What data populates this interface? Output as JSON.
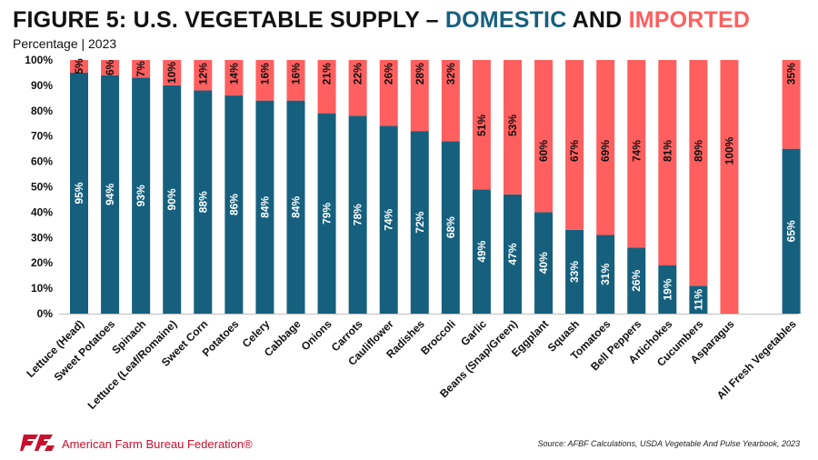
{
  "title": {
    "prefix": "FIGURE 5: U.S. VEGETABLE SUPPLY – ",
    "domestic": "DOMESTIC",
    "and": " AND ",
    "imported": "IMPORTED"
  },
  "subtitle": "Percentage | 2023",
  "footer": {
    "org": "American Farm Bureau Federation®",
    "source": "Source: AFBF Calculations, USDA Vegetable And Pulse Yearbook, 2023"
  },
  "colors": {
    "domestic": "#16607e",
    "imported": "#ff5f5f",
    "title_domestic": "#16607e",
    "title_imported": "#ff5f5f",
    "brand_red": "#c8102e"
  },
  "chart_data": {
    "type": "bar",
    "stacked": true,
    "percent": true,
    "ylim": [
      0,
      100
    ],
    "yticks": [
      "0%",
      "10%",
      "20%",
      "30%",
      "40%",
      "50%",
      "60%",
      "70%",
      "80%",
      "90%",
      "100%"
    ],
    "categories": [
      "Lettuce (Head)",
      "Sweet Potatoes",
      "Spinach",
      "Lettuce (Leaf/Romaine)",
      "Sweet Corn",
      "Potatoes",
      "Celery",
      "Cabbage",
      "Onions",
      "Carrots",
      "Cauliflower",
      "Radishes",
      "Broccoli",
      "Garlic",
      "Beans (Snap/Green)",
      "Eggplant",
      "Squash",
      "Tomatoes",
      "Bell Peppers",
      "Artichokes",
      "Cucumbers",
      "Asparagus",
      "All Fresh Vegetables"
    ],
    "series": [
      {
        "name": "DOMESTIC",
        "values": [
          95,
          94,
          93,
          90,
          88,
          86,
          84,
          84,
          79,
          78,
          74,
          72,
          68,
          49,
          47,
          40,
          33,
          31,
          26,
          19,
          11,
          0,
          65
        ]
      },
      {
        "name": "IMPORTED",
        "values": [
          5,
          6,
          7,
          10,
          12,
          14,
          16,
          16,
          21,
          22,
          26,
          28,
          32,
          51,
          53,
          60,
          67,
          69,
          74,
          81,
          89,
          100,
          35
        ]
      }
    ],
    "domestic_labels": [
      "95%",
      "94%",
      "93%",
      "90%",
      "88%",
      "86%",
      "84%",
      "84%",
      "79%",
      "78%",
      "74%",
      "72%",
      "68%",
      "49%",
      "47%",
      "40%",
      "33%",
      "31%",
      "26%",
      "19%",
      "11%",
      "",
      "65%"
    ],
    "imported_labels": [
      "5%",
      "6%",
      "7%",
      "10%",
      "12%",
      "14%",
      "16%",
      "16%",
      "21%",
      "22%",
      "26%",
      "28%",
      "32%",
      "51%",
      "53%",
      "60%",
      "67%",
      "69%",
      "74%",
      "81%",
      "89%",
      "100%",
      "35%"
    ],
    "gap_before_last": true,
    "grid": false,
    "legend": "none"
  }
}
